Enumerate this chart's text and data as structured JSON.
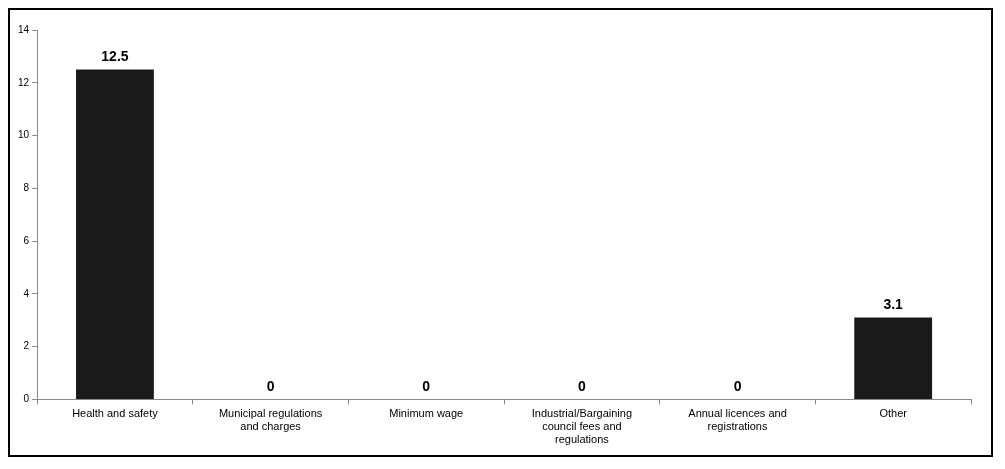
{
  "chart_data": {
    "type": "bar",
    "categories": [
      "Health and safety",
      "Municipal regulations and charges",
      "Minimum wage",
      "Industrial/Bargaining council fees and regulations",
      "Annual licences and registrations",
      "Other"
    ],
    "values": [
      12.5,
      0,
      0,
      0,
      0,
      3.1
    ],
    "color": "#1a1a1a",
    "ylim": [
      0,
      14
    ],
    "yticks": [
      0,
      2,
      4,
      6,
      8,
      10,
      12,
      14
    ],
    "data_labels": true
  }
}
